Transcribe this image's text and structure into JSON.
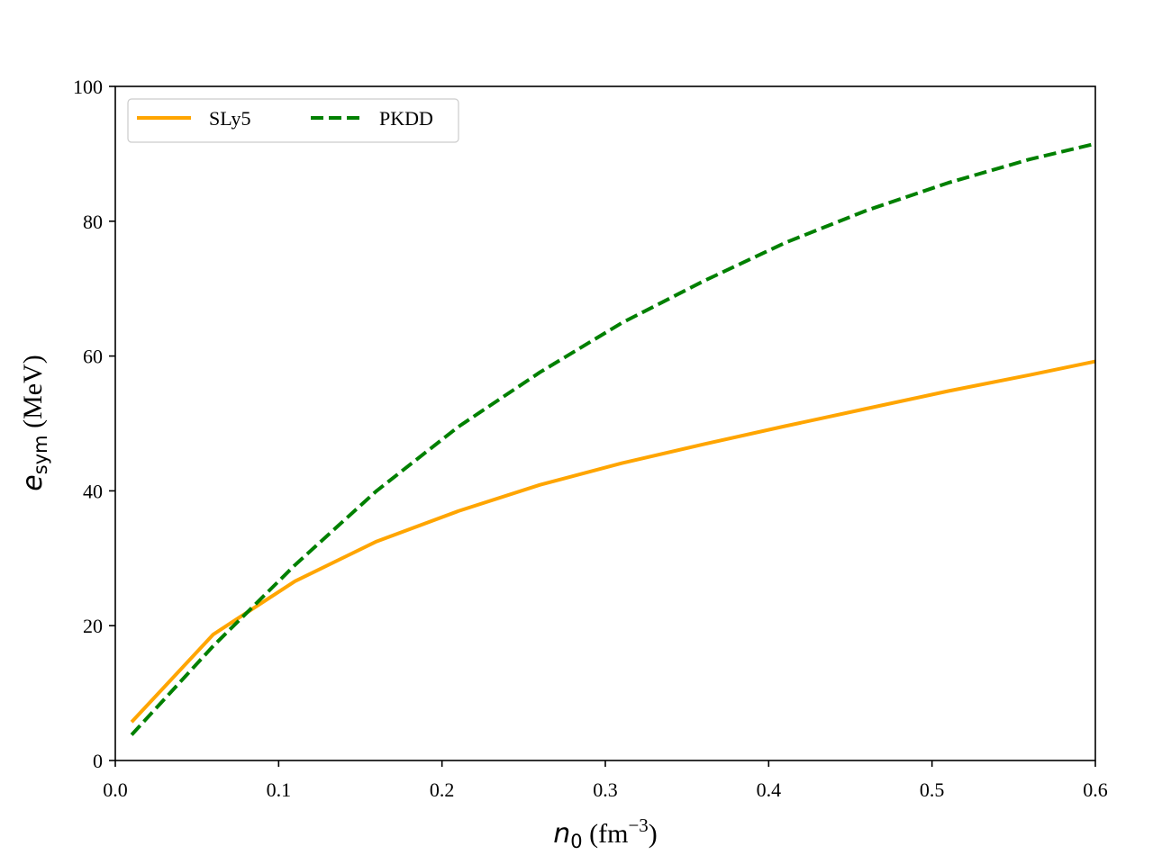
{
  "chart_data": {
    "type": "line",
    "xlabel": {
      "var": "n",
      "sub": "0",
      "unit_pre": " (fm",
      "unit_sup": "−3",
      "unit_post": ")"
    },
    "ylabel": {
      "var": "e",
      "sub": "sym",
      "unit": " (MeV)"
    },
    "xlim": [
      0.0,
      0.6
    ],
    "ylim": [
      0,
      100
    ],
    "xticks": [
      0.0,
      0.1,
      0.2,
      0.3,
      0.4,
      0.5,
      0.6
    ],
    "xtick_labels": [
      "0.0",
      "0.1",
      "0.2",
      "0.3",
      "0.4",
      "0.5",
      "0.6"
    ],
    "yticks": [
      0,
      20,
      40,
      60,
      80,
      100
    ],
    "ytick_labels": [
      "0",
      "20",
      "40",
      "60",
      "80",
      "100"
    ],
    "grid": false,
    "legend": {
      "placement": "top-left",
      "columns": 2
    },
    "series": [
      {
        "name": "SLy5",
        "color": "#ffa500",
        "style": "solid",
        "x": [
          0.01,
          0.06,
          0.11,
          0.16,
          0.21,
          0.26,
          0.31,
          0.36,
          0.41,
          0.46,
          0.51,
          0.56,
          0.6
        ],
        "y": [
          5.7,
          18.7,
          26.6,
          32.5,
          37.0,
          40.9,
          44.1,
          46.9,
          49.6,
          52.2,
          54.8,
          57.2,
          59.2
        ]
      },
      {
        "name": "PKDD",
        "color": "#008000",
        "style": "dashed",
        "x": [
          0.01,
          0.06,
          0.11,
          0.16,
          0.21,
          0.26,
          0.31,
          0.36,
          0.41,
          0.46,
          0.51,
          0.56,
          0.6
        ],
        "y": [
          3.8,
          17.0,
          29.0,
          40.0,
          49.5,
          57.6,
          64.9,
          71.1,
          76.8,
          81.6,
          85.7,
          89.2,
          91.5
        ]
      }
    ]
  }
}
